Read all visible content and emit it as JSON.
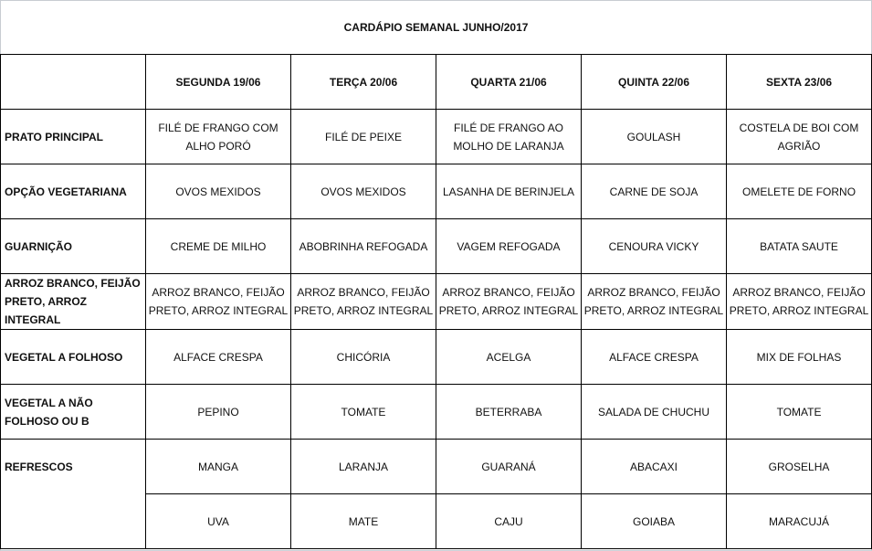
{
  "title": "CARDÁPIO SEMANAL JUNHO/2017",
  "days": [
    "SEGUNDA  19/06",
    "TERÇA  20/06",
    "QUARTA 21/06",
    "QUINTA 22/06",
    "SEXTA 23/06"
  ],
  "rows": [
    {
      "label": "PRATO PRINCIPAL",
      "cells": [
        "FILÉ DE FRANGO COM ALHO PORÓ",
        "FILÉ DE PEIXE",
        "FILÉ DE FRANGO AO MOLHO DE LARANJA",
        "GOULASH",
        "COSTELA DE BOI COM AGRIÃO"
      ]
    },
    {
      "label": "OPÇÃO VEGETARIANA",
      "cells": [
        "OVOS MEXIDOS",
        "OVOS MEXIDOS",
        "LASANHA DE BERINJELA",
        "CARNE DE SOJA",
        "OMELETE DE FORNO"
      ]
    },
    {
      "label": "GUARNIÇÃO",
      "cells": [
        "CREME DE MILHO",
        "ABOBRINHA REFOGADA",
        "VAGEM REFOGADA",
        "CENOURA VICKY",
        "BATATA SAUTE"
      ]
    },
    {
      "label": "ARROZ BRANCO, FEIJÃO PRETO, ARROZ INTEGRAL",
      "cells": [
        "ARROZ BRANCO, FEIJÃO PRETO, ARROZ INTEGRAL",
        "ARROZ BRANCO, FEIJÃO PRETO, ARROZ INTEGRAL",
        "ARROZ BRANCO, FEIJÃO PRETO, ARROZ INTEGRAL",
        "ARROZ BRANCO, FEIJÃO PRETO, ARROZ INTEGRAL",
        "ARROZ BRANCO, FEIJÃO PRETO, ARROZ INTEGRAL"
      ]
    },
    {
      "label": "VEGETAL A FOLHOSO",
      "cells": [
        "ALFACE CRESPA",
        "CHICÓRIA",
        "ACELGA",
        "ALFACE CRESPA",
        "MIX DE FOLHAS"
      ]
    },
    {
      "label": "VEGETAL A NÃO FOLHOSO OU B",
      "cells": [
        "PEPINO",
        "TOMATE",
        "BETERRABA",
        "SALADA DE CHUCHU",
        "TOMATE"
      ]
    }
  ],
  "refrescos": {
    "label": "REFRESCOS",
    "rows": [
      [
        "MANGA",
        "LARANJA",
        "GUARANÁ",
        "ABACAXI",
        "GROSELHA"
      ],
      [
        "UVA",
        "MATE",
        "CAJU",
        "GOIABA",
        "MARACUJÁ"
      ]
    ]
  }
}
